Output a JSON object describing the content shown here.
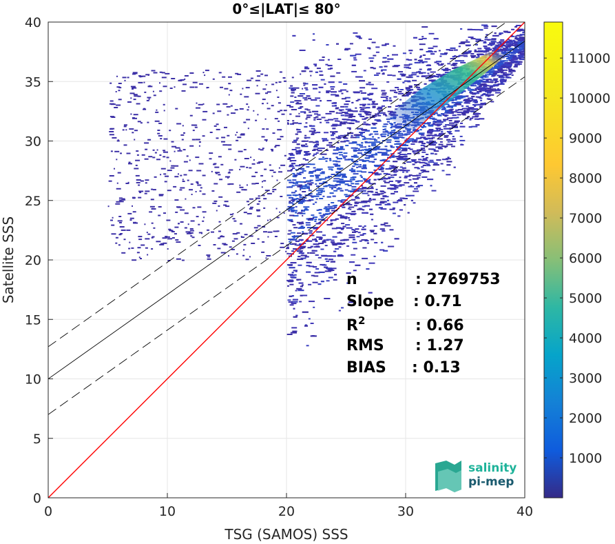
{
  "chart_data": {
    "type": "heatmap",
    "title": "0°≤|LAT|≤ 80°",
    "xlabel": "TSG (SAMOS) SSS",
    "ylabel": "Satellite SSS",
    "xlim": [
      0,
      40
    ],
    "ylim": [
      0,
      40
    ],
    "x_ticks": [
      "0",
      "10",
      "20",
      "30",
      "40"
    ],
    "y_ticks": [
      "0",
      "5",
      "10",
      "15",
      "20",
      "25",
      "30",
      "35",
      "40"
    ],
    "grid": true,
    "colorbar": {
      "colormap": "parula",
      "range": [
        0,
        11900
      ],
      "ticks": [
        "1000",
        "2000",
        "3000",
        "4000",
        "5000",
        "6000",
        "7000",
        "8000",
        "9000",
        "10000",
        "11000"
      ]
    },
    "reference_lines": [
      {
        "kind": "one-to-one",
        "color": "#ff0000",
        "slope": 1,
        "intercept": 0
      },
      {
        "kind": "regression",
        "color": "#000000",
        "style": "solid",
        "slope": 0.71,
        "intercept": 10.0
      },
      {
        "kind": "regression-upper",
        "color": "#000000",
        "style": "dashed",
        "slope": 0.71,
        "intercept": 12.7
      },
      {
        "kind": "regression-lower",
        "color": "#000000",
        "style": "dashed",
        "slope": 0.71,
        "intercept": 7.0
      }
    ],
    "stats": [
      {
        "label": "n",
        "value": ": 2769753"
      },
      {
        "label": "Slope",
        "value": ": 0.71"
      },
      {
        "label": "R",
        "sup": "2",
        "value": ": 0.66"
      },
      {
        "label": "RMS",
        "value": ": 1.27"
      },
      {
        "label": "BIAS",
        "value": ": 0.13"
      }
    ]
  },
  "logo": {
    "line1": "salinity",
    "line2": "pi-mep"
  },
  "colors": {
    "one_to_one": "#ff0000",
    "logo_top": "#1fb39a",
    "logo_bottom": "#1a5a6e"
  }
}
